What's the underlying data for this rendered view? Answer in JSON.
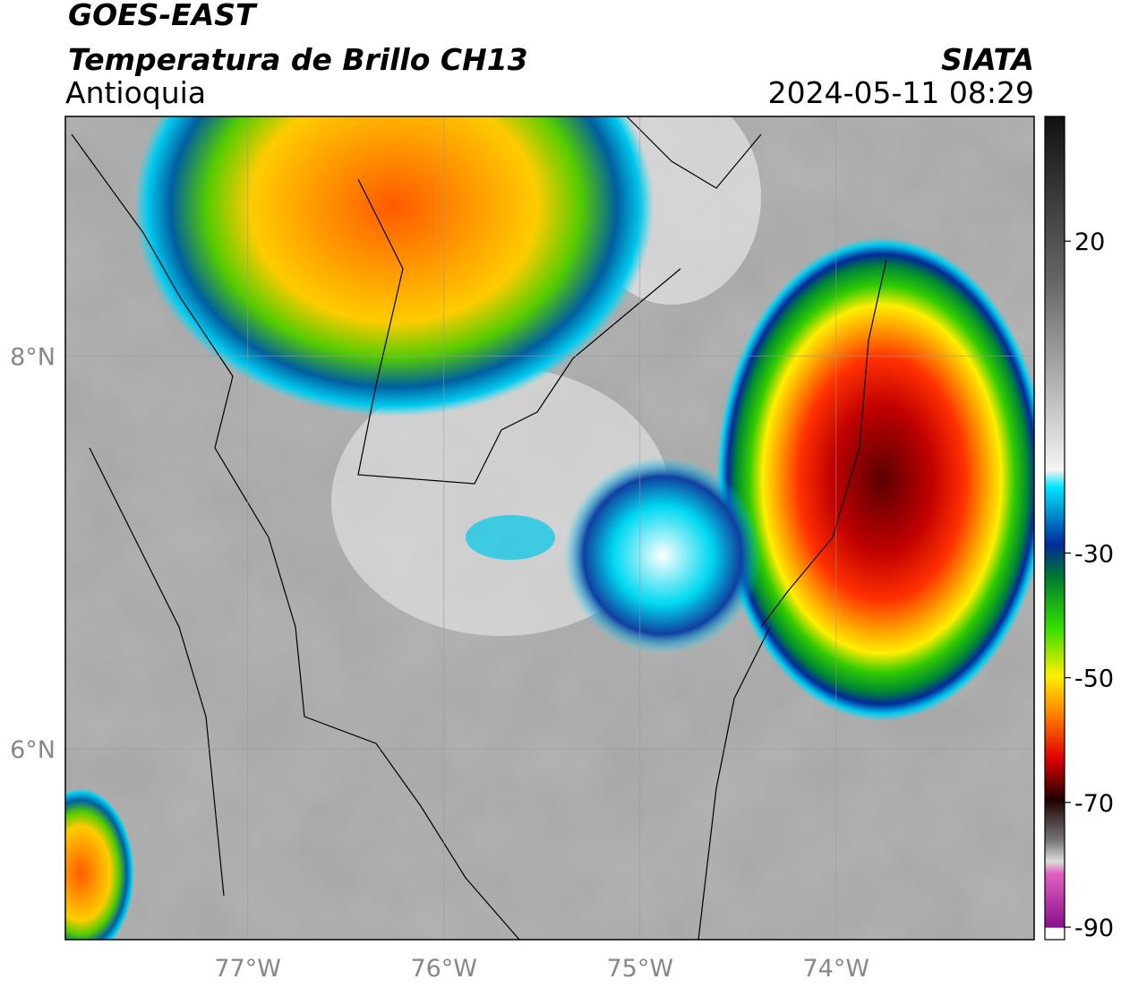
{
  "header": {
    "satellite": "GOES-EAST",
    "product": "Temperatura de Brillo CH13",
    "region": "Antioquia",
    "source": "SIATA",
    "timestamp": "2024-05-11 08:29"
  },
  "map": {
    "lon_range": [
      -77.93,
      -72.99
    ],
    "lat_range": [
      5.03,
      9.22
    ],
    "lon_ticks": [
      {
        "value": -77,
        "label": "77°W"
      },
      {
        "value": -76,
        "label": "76°W"
      },
      {
        "value": -75,
        "label": "75°W"
      },
      {
        "value": -74,
        "label": "74°W"
      }
    ],
    "lat_ticks": [
      {
        "value": 8,
        "label": "8°N"
      },
      {
        "value": 6,
        "label": "6°N"
      }
    ],
    "grid": true
  },
  "colorbar": {
    "range": [
      -92,
      40
    ],
    "ticks": [
      20,
      -30,
      -50,
      -70,
      -90
    ]
  }
}
